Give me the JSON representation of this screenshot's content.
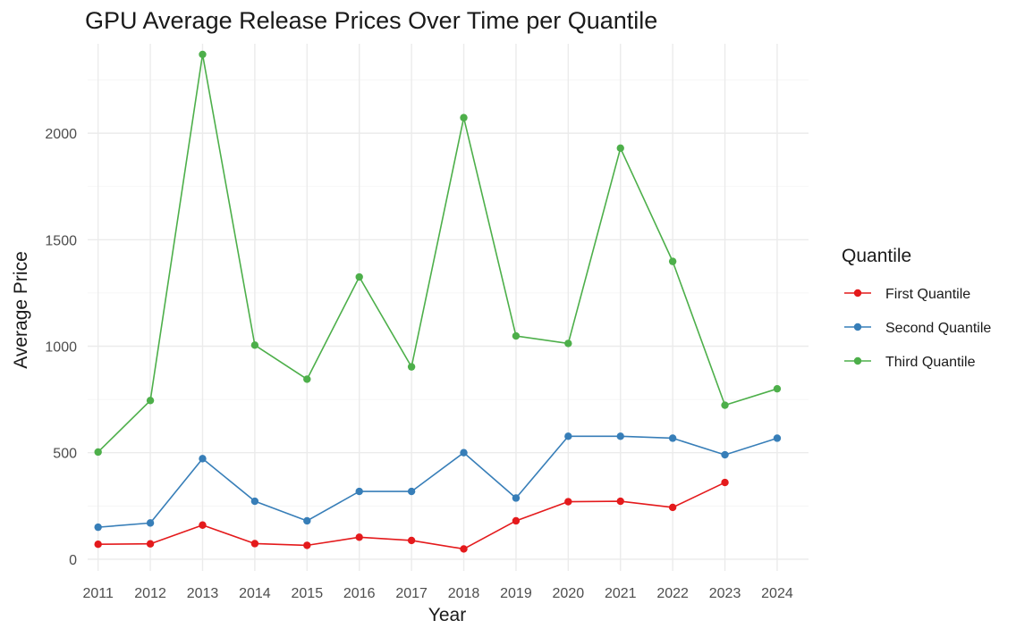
{
  "chart_data": {
    "type": "line",
    "title": "GPU Average Release Prices Over Time per Quantile",
    "xlabel": "Year",
    "ylabel": "Average Price",
    "x": [
      2011,
      2012,
      2013,
      2014,
      2015,
      2016,
      2017,
      2018,
      2019,
      2020,
      2021,
      2022,
      2023,
      2024
    ],
    "xlim": [
      2010.8,
      2024.6
    ],
    "ylim": [
      -55,
      2420
    ],
    "yticks": [
      0,
      500,
      1000,
      1500,
      2000
    ],
    "grid": true,
    "legend": {
      "title": "Quantile",
      "position": "right"
    },
    "series": [
      {
        "name": "First Quantile",
        "color": "#E41A1C",
        "values": [
          70,
          72,
          160,
          73,
          65,
          103,
          88,
          48,
          180,
          270,
          272,
          243,
          360,
          null
        ]
      },
      {
        "name": "Second Quantile",
        "color": "#377EB8",
        "values": [
          150,
          170,
          472,
          272,
          180,
          318,
          318,
          500,
          287,
          577,
          577,
          568,
          490,
          568
        ]
      },
      {
        "name": "Third Quantile",
        "color": "#4DAF4A",
        "values": [
          503,
          745,
          2370,
          1005,
          845,
          1325,
          903,
          2073,
          1048,
          1013,
          1930,
          1398,
          723,
          800
        ]
      }
    ]
  }
}
